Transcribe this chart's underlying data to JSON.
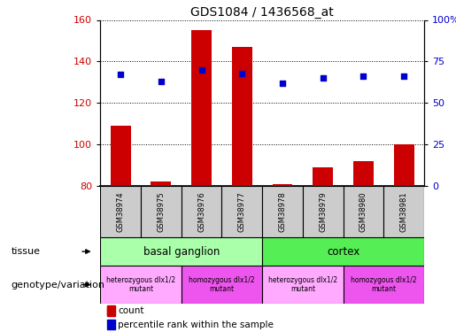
{
  "title": "GDS1084 / 1436568_at",
  "samples": [
    "GSM38974",
    "GSM38975",
    "GSM38976",
    "GSM38977",
    "GSM38978",
    "GSM38979",
    "GSM38980",
    "GSM38981"
  ],
  "bar_values": [
    109,
    82,
    155,
    147,
    81,
    89,
    92,
    100
  ],
  "dot_values": [
    67,
    63,
    70,
    68,
    62,
    65,
    66,
    66
  ],
  "bar_baseline": 80,
  "ylim_left": [
    80,
    160
  ],
  "ylim_right": [
    0,
    100
  ],
  "yticks_left": [
    80,
    100,
    120,
    140,
    160
  ],
  "yticks_right": [
    0,
    25,
    50,
    75,
    100
  ],
  "ytick_labels_right": [
    "0",
    "25",
    "50",
    "75",
    "100%"
  ],
  "bar_color": "#cc0000",
  "dot_color": "#0000cc",
  "tissue_row": [
    {
      "label": "basal ganglion",
      "start": 0,
      "end": 4,
      "color": "#aaffaa"
    },
    {
      "label": "cortex",
      "start": 4,
      "end": 8,
      "color": "#55ee55"
    }
  ],
  "genotype_row": [
    {
      "label": "heterozygous dlx1/2\nmutant",
      "start": 0,
      "end": 2,
      "color": "#ffaaff"
    },
    {
      "label": "homozygous dlx1/2\nmutant",
      "start": 2,
      "end": 4,
      "color": "#ee55ee"
    },
    {
      "label": "heterozygous dlx1/2\nmutant",
      "start": 4,
      "end": 6,
      "color": "#ffaaff"
    },
    {
      "label": "homozygous dlx1/2\nmutant",
      "start": 6,
      "end": 8,
      "color": "#ee55ee"
    }
  ],
  "label_tissue": "tissue",
  "label_genotype": "genotype/variation",
  "legend_count": "count",
  "legend_percentile": "percentile rank within the sample",
  "sample_box_color": "#cccccc"
}
